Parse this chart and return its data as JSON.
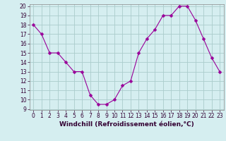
{
  "x": [
    0,
    1,
    2,
    3,
    4,
    5,
    6,
    7,
    8,
    9,
    10,
    11,
    12,
    13,
    14,
    15,
    16,
    17,
    18,
    19,
    20,
    21,
    22,
    23
  ],
  "y": [
    18,
    17,
    15,
    15,
    14,
    13,
    13,
    10.5,
    9.5,
    9.5,
    10,
    11.5,
    12,
    15,
    16.5,
    17.5,
    19,
    19,
    20,
    20,
    18.5,
    16.5,
    14.5,
    13
  ],
  "line_color": "#990099",
  "marker_color": "#990099",
  "bg_color": "#d5eef0",
  "grid_color": "#aacccc",
  "xlabel": "Windchill (Refroidissement éolien,°C)",
  "ylim": [
    9,
    20
  ],
  "xlim": [
    -0.5,
    23.5
  ],
  "yticks": [
    9,
    10,
    11,
    12,
    13,
    14,
    15,
    16,
    17,
    18,
    19,
    20
  ],
  "xticks": [
    0,
    1,
    2,
    3,
    4,
    5,
    6,
    7,
    8,
    9,
    10,
    11,
    12,
    13,
    14,
    15,
    16,
    17,
    18,
    19,
    20,
    21,
    22,
    23
  ],
  "tick_fontsize": 5.5,
  "xlabel_fontsize": 6.5,
  "marker_size": 2.5,
  "line_width": 0.8
}
